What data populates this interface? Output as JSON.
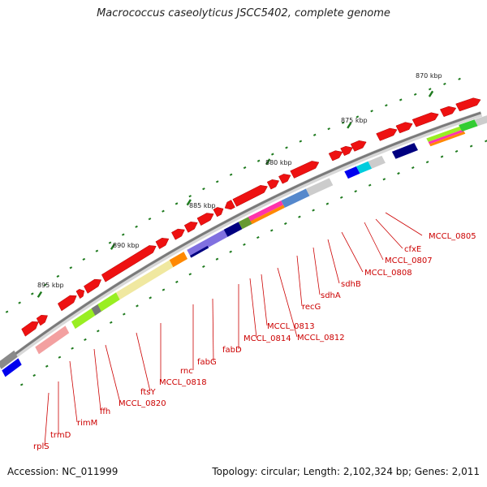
{
  "title": "Macrococcus caseolyticus JSCC5402, complete genome",
  "accession": "Accession: NC_011999",
  "topology": "Topology: circular; Length: 2,102,324 bp; Genes: 2,011",
  "colors": {
    "backbone_dark": "#7a7a7a",
    "backbone_light": "#d8d8d8",
    "gene_red": "#ee1111",
    "tick_green": "#1e7a1e",
    "label_red": "#cc0000"
  },
  "ruler": {
    "labels": [
      {
        "text": "870 kbp"
      },
      {
        "text": "875 kbp"
      },
      {
        "text": "880 kbp"
      },
      {
        "text": "885 kbp"
      },
      {
        "text": "890 kbp"
      },
      {
        "text": "895 kbp"
      }
    ]
  },
  "gene_labels": [
    {
      "text": "MCCL_0805"
    },
    {
      "text": "cfxE"
    },
    {
      "text": "MCCL_0807"
    },
    {
      "text": "MCCL_0808"
    },
    {
      "text": "sdhB"
    },
    {
      "text": "sdhA"
    },
    {
      "text": "recG"
    },
    {
      "text": "MCCL_0812"
    },
    {
      "text": "MCCL_0813"
    },
    {
      "text": "MCCL_0814"
    },
    {
      "text": "fabD"
    },
    {
      "text": "fabG"
    },
    {
      "text": "rnc"
    },
    {
      "text": "MCCL_0818"
    },
    {
      "text": "ftsY"
    },
    {
      "text": "MCCL_0820"
    },
    {
      "text": "ffh"
    },
    {
      "text": "rimM"
    },
    {
      "text": "trmD"
    },
    {
      "text": "rplS"
    }
  ]
}
